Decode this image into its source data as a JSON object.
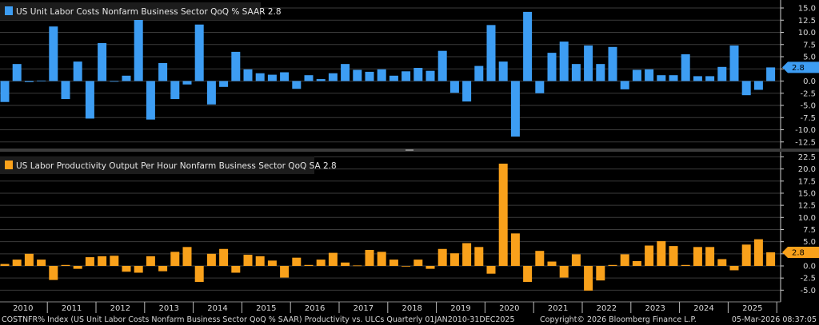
{
  "chart_data": [
    {
      "type": "bar",
      "legend": "US Unit Labor Costs Nonfarm Business Sector QoQ % SAAR 2.8",
      "last_value_label": "2.8",
      "color": "#3d9df3",
      "ylim": [
        -13.5,
        16.5
      ],
      "yticks": [
        "15.0",
        "12.5",
        "10.0",
        "7.5",
        "5.0",
        "2.5",
        "0.0",
        "-2.5",
        "-5.0",
        "-7.5",
        "-10.0",
        "-12.5"
      ],
      "ytick_values": [
        15,
        12.5,
        10,
        7.5,
        5,
        2.5,
        0,
        -2.5,
        -5,
        -7.5,
        -10,
        -12.5
      ],
      "grid": true,
      "values": [
        -4.3,
        3.5,
        -0.2,
        0.1,
        11.2,
        -3.7,
        4.0,
        -7.7,
        7.8,
        0.0,
        1.1,
        12.6,
        -7.9,
        3.7,
        -3.7,
        -0.7,
        11.6,
        -4.8,
        -1.2,
        6.0,
        2.4,
        1.6,
        1.3,
        1.8,
        -1.6,
        1.2,
        0.4,
        1.6,
        3.5,
        2.3,
        1.9,
        2.4,
        1.1,
        2.0,
        2.7,
        2.1,
        6.2,
        -2.4,
        -4.2,
        3.1,
        11.5,
        4.0,
        -11.4,
        14.2,
        -2.5,
        5.8,
        8.1,
        3.5,
        7.3,
        3.5,
        7.0,
        -1.7,
        2.3,
        2.4,
        1.2,
        1.2,
        5.5,
        1.0,
        1.0,
        2.9,
        7.3,
        -2.9,
        -1.8,
        2.8
      ]
    },
    {
      "type": "bar",
      "legend": "US Labor Productivity Output Per Hour Nonfarm Business Sector QoQ SA 2.8",
      "last_value_label": "2.8",
      "color": "#f9a11b",
      "ylim": [
        -7.5,
        23.5
      ],
      "yticks": [
        "22.5",
        "20.0",
        "17.5",
        "15.0",
        "12.5",
        "10.0",
        "7.5",
        "5.0",
        "2.5",
        "0.0",
        "-2.5",
        "-5.0"
      ],
      "ytick_values": [
        22.5,
        20,
        17.5,
        15,
        12.5,
        10,
        7.5,
        5,
        2.5,
        0,
        -2.5,
        -5
      ],
      "grid": true,
      "values": [
        0.4,
        1.3,
        2.5,
        1.3,
        -2.9,
        0.2,
        -0.6,
        1.8,
        2.0,
        2.1,
        -1.2,
        -1.4,
        2.0,
        -1.1,
        2.9,
        3.9,
        -3.3,
        2.5,
        3.5,
        -1.4,
        2.3,
        2.0,
        1.1,
        -2.4,
        1.7,
        0.2,
        1.3,
        2.7,
        0.7,
        0.1,
        3.3,
        2.9,
        1.3,
        0.0,
        1.3,
        -0.6,
        3.5,
        2.6,
        4.7,
        3.9,
        -1.6,
        21.1,
        6.7,
        -3.3,
        3.1,
        0.9,
        -2.4,
        2.4,
        -5.1,
        -3.0,
        0.2,
        2.4,
        1.0,
        4.2,
        5.1,
        4.1,
        0.2,
        3.9,
        3.9,
        1.4,
        -0.9,
        4.4,
        5.5,
        2.8
      ]
    }
  ],
  "x_axis": {
    "years": [
      "2010",
      "2011",
      "2012",
      "2013",
      "2014",
      "2015",
      "2016",
      "2017",
      "2018",
      "2019",
      "2020",
      "2021",
      "2022",
      "2023",
      "2024",
      "2025"
    ]
  },
  "footer": {
    "description": "COSTNFR% Index (US Unit Labor Costs Nonfarm Business Sector QoQ % SAAR) Productivity vs. ULCs Quarterly 01JAN2010-31DEC2025",
    "copyright": "Copyright© 2026 Bloomberg Finance L.P.",
    "timestamp": "05-Mar-2026 08:37:05"
  }
}
